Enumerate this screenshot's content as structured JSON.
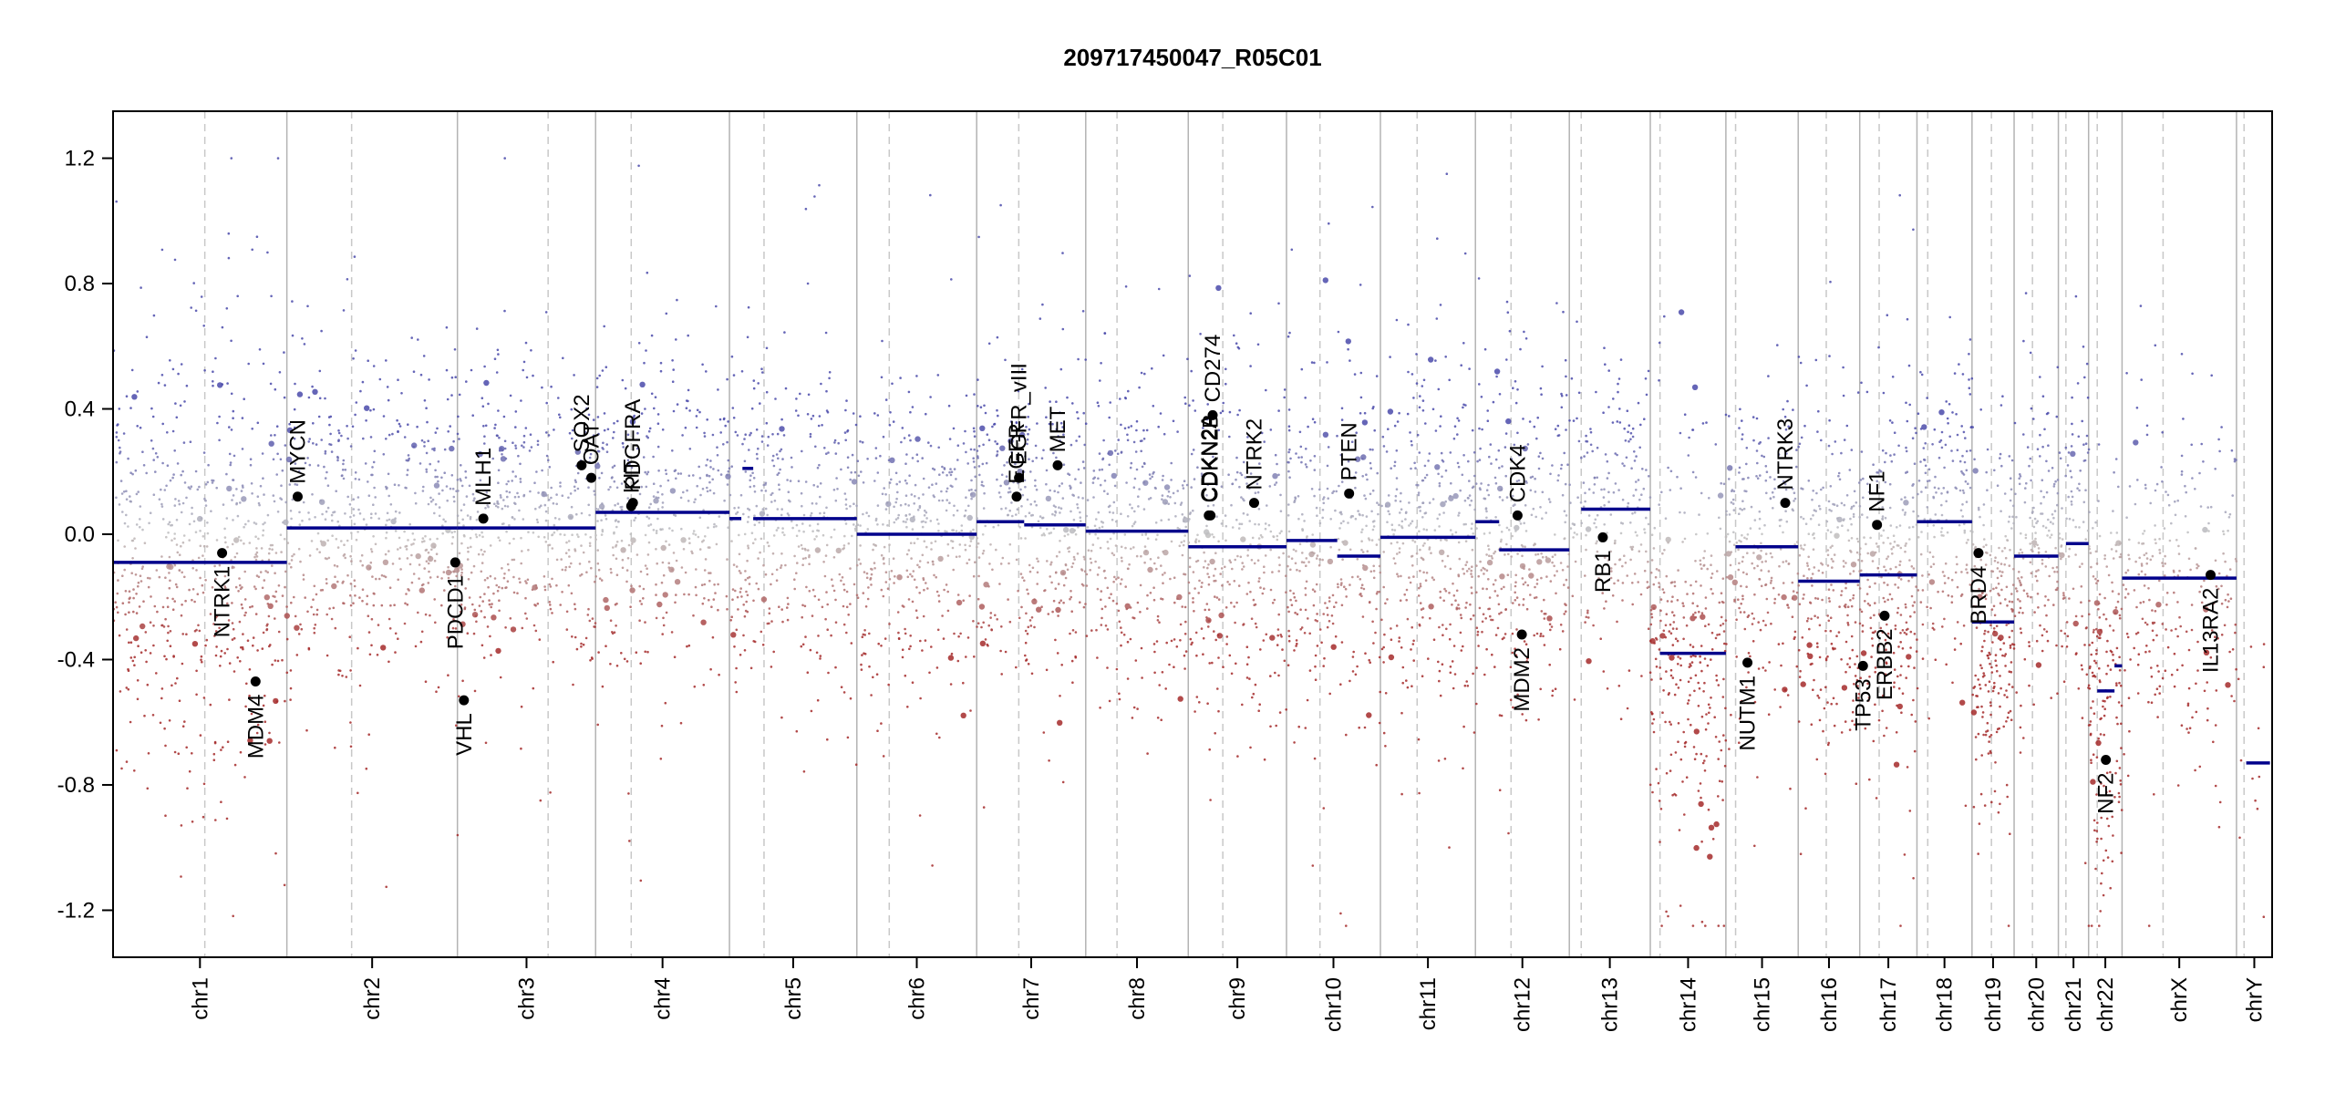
{
  "chart_data": {
    "type": "scatter",
    "title": "209717450047_R05C01",
    "xlabel": "",
    "ylabel": "",
    "ylim": [
      -1.35,
      1.35
    ],
    "y_ticks": [
      1.2,
      0.8,
      0.4,
      0.0,
      -0.4,
      -0.8,
      -1.2
    ],
    "y_tick_labels": [
      "1.2",
      "0.8",
      "0.4",
      "0.0",
      "-0.4",
      "-0.8",
      "-1.2"
    ],
    "x_unit": "relative genome position (chr1 start = 0, chrY end = 1000)",
    "xlim": [
      0,
      1000
    ],
    "colors": {
      "gain": "#4a4aaa",
      "loss": "#a52a2a",
      "neutral": "#bfbfbf",
      "segment": "#00008b",
      "gene": "#000000",
      "divider": "#b3b3b3"
    },
    "chromosomes": [
      {
        "name": "chr1",
        "start": 0,
        "end": 80.5,
        "centromere": 42.5
      },
      {
        "name": "chr2",
        "start": 80.5,
        "end": 159.5,
        "centromere": 110.5
      },
      {
        "name": "chr3",
        "start": 159.5,
        "end": 223.5,
        "centromere": 201.5
      },
      {
        "name": "chr4",
        "start": 223.5,
        "end": 285.5,
        "centromere": 240.0
      },
      {
        "name": "chr5",
        "start": 285.5,
        "end": 344.5,
        "centromere": 301.5
      },
      {
        "name": "chr6",
        "start": 344.5,
        "end": 400.0,
        "centromere": 359.5
      },
      {
        "name": "chr7",
        "start": 400.0,
        "end": 450.5,
        "centromere": 419.5
      },
      {
        "name": "chr8",
        "start": 450.5,
        "end": 498.0,
        "centromere": 465.0
      },
      {
        "name": "chr9",
        "start": 498.0,
        "end": 543.5,
        "centromere": 514.0
      },
      {
        "name": "chr10",
        "start": 543.5,
        "end": 587.0,
        "centromere": 559.0
      },
      {
        "name": "chr11",
        "start": 587.0,
        "end": 631.0,
        "centromere": 604.0
      },
      {
        "name": "chr12",
        "start": 631.0,
        "end": 674.5,
        "centromere": 647.5
      },
      {
        "name": "chr13",
        "start": 674.5,
        "end": 712.0,
        "centromere": 680.0
      },
      {
        "name": "chr14",
        "start": 712.0,
        "end": 747.0,
        "centromere": 716.5
      },
      {
        "name": "chr15",
        "start": 747.0,
        "end": 780.5,
        "centromere": 751.5
      },
      {
        "name": "chr16",
        "start": 780.5,
        "end": 809.0,
        "centromere": 793.5
      },
      {
        "name": "chr17",
        "start": 809.0,
        "end": 835.5,
        "centromere": 818.0
      },
      {
        "name": "chr18",
        "start": 835.5,
        "end": 861.0,
        "centromere": 840.5
      },
      {
        "name": "chr19",
        "start": 861.0,
        "end": 880.5,
        "centromere": 870.0
      },
      {
        "name": "chr20",
        "start": 880.5,
        "end": 901.0,
        "centromere": 889.0
      },
      {
        "name": "chr21",
        "start": 901.0,
        "end": 915.0,
        "centromere": 904.5
      },
      {
        "name": "chr22",
        "start": 915.0,
        "end": 930.5,
        "centromere": 919.0
      },
      {
        "name": "chrX",
        "start": 930.5,
        "end": 983.5,
        "centromere": 949.5
      },
      {
        "name": "chrY",
        "start": 983.5,
        "end": 1000.0,
        "centromere": 987.0
      }
    ],
    "segments": [
      {
        "chr": "chr1",
        "x0": 0,
        "x1": 80.5,
        "value": -0.09
      },
      {
        "chr": "chr2",
        "x0": 80.5,
        "x1": 159.5,
        "value": 0.02
      },
      {
        "chr": "chr3",
        "x0": 159.5,
        "x1": 223.5,
        "value": 0.02
      },
      {
        "chr": "chr4",
        "x0": 223.5,
        "x1": 285.5,
        "value": 0.07
      },
      {
        "chr": "chr5",
        "x0": 285.5,
        "x1": 291.0,
        "value": 0.05
      },
      {
        "chr": "chr5",
        "x0": 291.5,
        "x1": 296.5,
        "value": 0.21
      },
      {
        "chr": "chr5",
        "x0": 296.5,
        "x1": 344.5,
        "value": 0.05
      },
      {
        "chr": "chr6",
        "x0": 344.5,
        "x1": 400.0,
        "value": 0.0
      },
      {
        "chr": "chr7",
        "x0": 400.0,
        "x1": 422.0,
        "value": 0.04
      },
      {
        "chr": "chr7",
        "x0": 422.0,
        "x1": 450.5,
        "value": 0.03
      },
      {
        "chr": "chr8",
        "x0": 450.5,
        "x1": 498.0,
        "value": 0.01
      },
      {
        "chr": "chr9",
        "x0": 498.0,
        "x1": 543.5,
        "value": -0.04
      },
      {
        "chr": "chr10",
        "x0": 543.5,
        "x1": 567.0,
        "value": -0.02
      },
      {
        "chr": "chr10",
        "x0": 567.0,
        "x1": 587.0,
        "value": -0.07
      },
      {
        "chr": "chr11",
        "x0": 587.0,
        "x1": 631.0,
        "value": -0.01
      },
      {
        "chr": "chr12",
        "x0": 631.0,
        "x1": 642.0,
        "value": 0.04
      },
      {
        "chr": "chr12",
        "x0": 642.0,
        "x1": 674.5,
        "value": -0.05
      },
      {
        "chr": "chr13",
        "x0": 680.0,
        "x1": 712.0,
        "value": 0.08
      },
      {
        "chr": "chr14",
        "x0": 716.5,
        "x1": 747.0,
        "value": -0.38
      },
      {
        "chr": "chr15",
        "x0": 751.5,
        "x1": 780.5,
        "value": -0.04
      },
      {
        "chr": "chr16",
        "x0": 780.5,
        "x1": 809.0,
        "value": -0.15
      },
      {
        "chr": "chr17",
        "x0": 809.0,
        "x1": 835.5,
        "value": -0.13
      },
      {
        "chr": "chr18",
        "x0": 835.5,
        "x1": 861.0,
        "value": 0.04
      },
      {
        "chr": "chr19",
        "x0": 861.0,
        "x1": 870.5,
        "value": -0.28
      },
      {
        "chr": "chr19",
        "x0": 870.5,
        "x1": 880.5,
        "value": -0.28
      },
      {
        "chr": "chr20",
        "x0": 880.5,
        "x1": 901.0,
        "value": -0.07
      },
      {
        "chr": "chr21",
        "x0": 904.5,
        "x1": 915.0,
        "value": -0.03
      },
      {
        "chr": "chr22",
        "x0": 919.0,
        "x1": 927.0,
        "value": -0.5
      },
      {
        "chr": "chr22",
        "x0": 927.0,
        "x1": 930.5,
        "value": -0.42
      },
      {
        "chr": "chrX",
        "x0": 930.5,
        "x1": 983.5,
        "value": -0.14
      },
      {
        "chr": "chrY",
        "x0": 988.0,
        "x1": 999.0,
        "value": -0.73
      }
    ],
    "genes": [
      {
        "name": "NTRK1",
        "chr": "chr1",
        "x": 50.5,
        "value": -0.06,
        "side": "below"
      },
      {
        "name": "MDM4",
        "chr": "chr1",
        "x": 66.0,
        "value": -0.47,
        "side": "below"
      },
      {
        "name": "MYCN",
        "chr": "chr2",
        "x": 85.5,
        "value": 0.12,
        "side": "above"
      },
      {
        "name": "PDCD1",
        "chr": "chr2",
        "x": 158.5,
        "value": -0.09,
        "side": "below"
      },
      {
        "name": "VHL",
        "chr": "chr3",
        "x": 162.5,
        "value": -0.53,
        "side": "below"
      },
      {
        "name": "MLH1",
        "chr": "chr3",
        "x": 171.5,
        "value": 0.05,
        "side": "above"
      },
      {
        "name": "SOX2",
        "chr": "chr3",
        "x": 217.0,
        "value": 0.22,
        "side": "above"
      },
      {
        "name": "OAT",
        "chr": "chr3",
        "x": 221.5,
        "value": 0.18,
        "side": "above"
      },
      {
        "name": "KIT",
        "chr": "chr4",
        "x": 240.0,
        "value": 0.09,
        "side": "above"
      },
      {
        "name": "PDGFRA",
        "chr": "chr4",
        "x": 240.8,
        "value": 0.1,
        "side": "above"
      },
      {
        "name": "EGFR",
        "chr": "chr7",
        "x": 418.5,
        "value": 0.12,
        "side": "above"
      },
      {
        "name": "EGFR_vIII",
        "chr": "chr7",
        "x": 419.6,
        "value": 0.18,
        "side": "above"
      },
      {
        "name": "MET",
        "chr": "chr7",
        "x": 437.5,
        "value": 0.22,
        "side": "above"
      },
      {
        "name": "CDKN2A",
        "chr": "chr9",
        "x": 507.5,
        "value": 0.06,
        "side": "above"
      },
      {
        "name": "CDKN2B",
        "chr": "chr9",
        "x": 508.3,
        "value": 0.06,
        "side": "above"
      },
      {
        "name": "CD274",
        "chr": "chr9",
        "x": 509.3,
        "value": 0.38,
        "side": "above"
      },
      {
        "name": "NTRK2",
        "chr": "chr9",
        "x": 528.5,
        "value": 0.1,
        "side": "above"
      },
      {
        "name": "PTEN",
        "chr": "chr10",
        "x": 572.5,
        "value": 0.13,
        "side": "above"
      },
      {
        "name": "CDK4",
        "chr": "chr12",
        "x": 650.5,
        "value": 0.06,
        "side": "above"
      },
      {
        "name": "MDM2",
        "chr": "chr12",
        "x": 652.5,
        "value": -0.32,
        "side": "below"
      },
      {
        "name": "RB1",
        "chr": "chr13",
        "x": 690.0,
        "value": -0.01,
        "side": "below"
      },
      {
        "name": "NUTM1",
        "chr": "chr15",
        "x": 757.0,
        "value": -0.41,
        "side": "below"
      },
      {
        "name": "NTRK3",
        "chr": "chr15",
        "x": 774.5,
        "value": 0.1,
        "side": "above"
      },
      {
        "name": "TP53",
        "chr": "chr17",
        "x": 810.5,
        "value": -0.42,
        "side": "below"
      },
      {
        "name": "NF1",
        "chr": "chr17",
        "x": 817.0,
        "value": 0.03,
        "side": "above"
      },
      {
        "name": "ERBB2",
        "chr": "chr17",
        "x": 820.5,
        "value": -0.26,
        "side": "below"
      },
      {
        "name": "BRD4",
        "chr": "chr19",
        "x": 864.0,
        "value": -0.06,
        "side": "below"
      },
      {
        "name": "NF2",
        "chr": "chr22",
        "x": 923.0,
        "value": -0.72,
        "side": "below"
      },
      {
        "name": "IL13RA2",
        "chr": "chrX",
        "x": 971.5,
        "value": -0.13,
        "side": "below"
      }
    ],
    "probe_profile": [
      {
        "chr": "chr1",
        "level": -0.09,
        "spread": 0.34,
        "count": 620
      },
      {
        "chr": "chr2",
        "level": 0.03,
        "spread": 0.24,
        "count": 520
      },
      {
        "chr": "chr3",
        "level": 0.02,
        "spread": 0.24,
        "count": 430
      },
      {
        "chr": "chr4",
        "level": 0.07,
        "spread": 0.24,
        "count": 400
      },
      {
        "chr": "chr5",
        "level": 0.05,
        "spread": 0.24,
        "count": 390
      },
      {
        "chr": "chr6",
        "level": 0.0,
        "spread": 0.24,
        "count": 380
      },
      {
        "chr": "chr7",
        "level": 0.03,
        "spread": 0.25,
        "count": 360
      },
      {
        "chr": "chr8",
        "level": 0.01,
        "spread": 0.24,
        "count": 320
      },
      {
        "chr": "chr9",
        "level": -0.04,
        "spread": 0.25,
        "count": 300
      },
      {
        "chr": "chr10",
        "level": -0.05,
        "spread": 0.25,
        "count": 320
      },
      {
        "chr": "chr11",
        "level": -0.01,
        "spread": 0.26,
        "count": 340
      },
      {
        "chr": "chr12",
        "level": -0.03,
        "spread": 0.27,
        "count": 320
      },
      {
        "chr": "chr13",
        "level": 0.08,
        "spread": 0.24,
        "count": 200
      },
      {
        "chr": "chr14",
        "level": -0.38,
        "spread": 0.3,
        "count": 300
      },
      {
        "chr": "chr15",
        "level": -0.04,
        "spread": 0.25,
        "count": 230
      },
      {
        "chr": "chr16",
        "level": -0.15,
        "spread": 0.26,
        "count": 240
      },
      {
        "chr": "chr17",
        "level": -0.13,
        "spread": 0.26,
        "count": 250
      },
      {
        "chr": "chr18",
        "level": 0.04,
        "spread": 0.24,
        "count": 170
      },
      {
        "chr": "chr19",
        "level": -0.28,
        "spread": 0.28,
        "count": 230
      },
      {
        "chr": "chr20",
        "level": -0.07,
        "spread": 0.25,
        "count": 160
      },
      {
        "chr": "chr21",
        "level": -0.03,
        "spread": 0.26,
        "count": 90
      },
      {
        "chr": "chr22",
        "level": -0.48,
        "spread": 0.3,
        "count": 180
      },
      {
        "chr": "chrX",
        "level": -0.14,
        "spread": 0.26,
        "count": 260
      },
      {
        "chr": "chrY",
        "level": -0.73,
        "spread": 0.2,
        "count": 12
      }
    ]
  }
}
